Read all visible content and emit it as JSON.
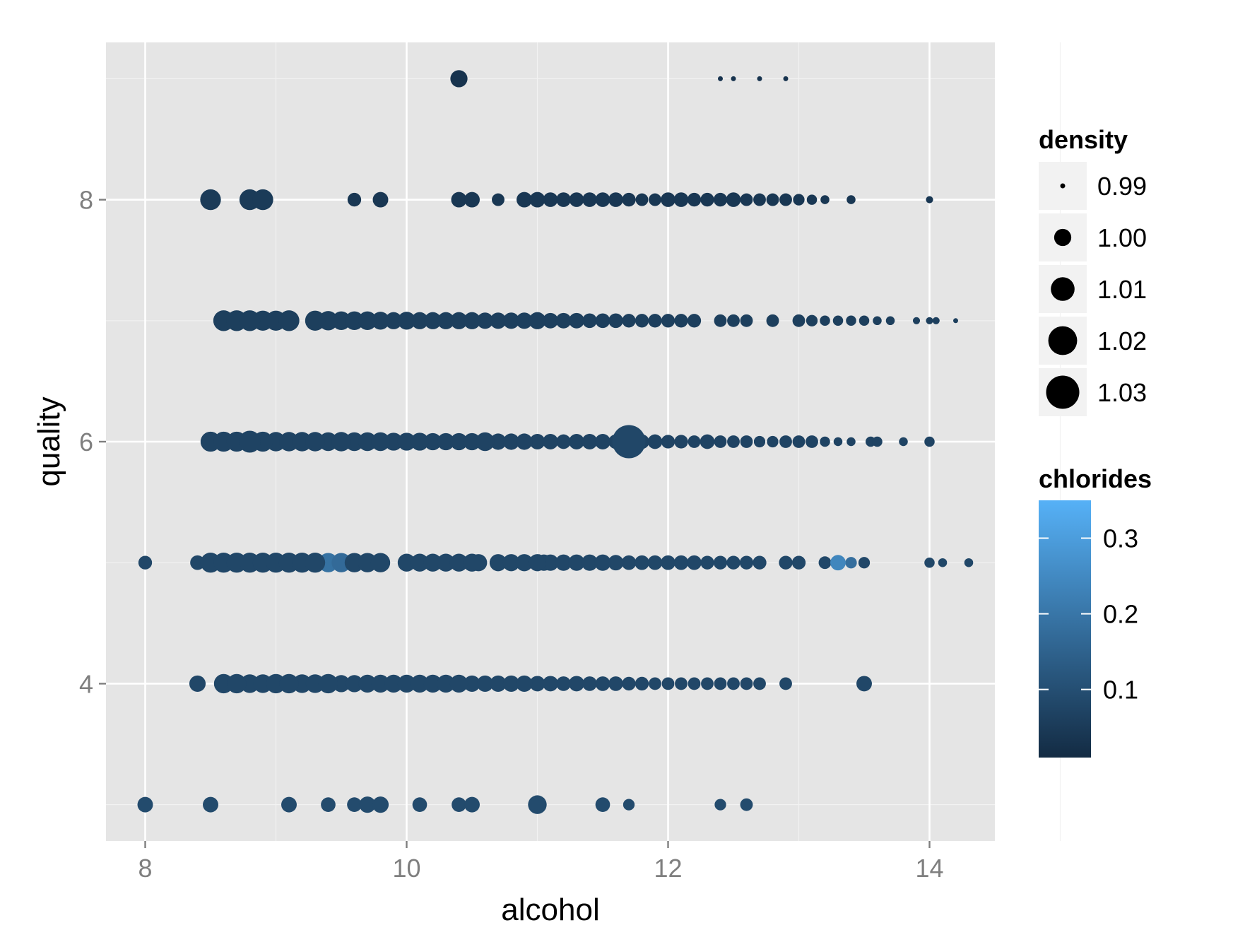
{
  "chart_data": {
    "type": "scatter",
    "xlabel": "alcohol",
    "ylabel": "quality",
    "xlim": [
      7.7,
      14.5
    ],
    "ylim": [
      2.7,
      9.3
    ],
    "x_ticks": [
      8,
      10,
      12,
      14
    ],
    "x_tick_labels": [
      "8",
      "10",
      "12",
      "14"
    ],
    "y_ticks": [
      4,
      6,
      8
    ],
    "y_tick_labels": [
      "4",
      "6",
      "8"
    ],
    "grid": true,
    "legend_position": "right",
    "size_legend": {
      "title": "density",
      "entries": [
        {
          "label": "0.99",
          "value": 0.99
        },
        {
          "label": "1.00",
          "value": 1.0
        },
        {
          "label": "1.01",
          "value": 1.01
        },
        {
          "label": "1.02",
          "value": 1.02
        },
        {
          "label": "1.03",
          "value": 1.03
        }
      ]
    },
    "color_legend": {
      "title": "chlorides",
      "min": 0.01,
      "max": 0.35,
      "low_color": "#132B43",
      "high_color": "#56B1F7",
      "ticks": [
        {
          "label": "0.1",
          "value": 0.1
        },
        {
          "label": "0.2",
          "value": 0.2
        },
        {
          "label": "0.3",
          "value": 0.3
        }
      ]
    },
    "points": [
      [
        10.4,
        9,
        1.0,
        0.03
      ],
      [
        12.4,
        9,
        0.99,
        0.03
      ],
      [
        12.5,
        9,
        0.99,
        0.03
      ],
      [
        12.7,
        9,
        0.99,
        0.03
      ],
      [
        12.9,
        9,
        0.99,
        0.03
      ],
      [
        8.5,
        8,
        1.005,
        0.05
      ],
      [
        8.8,
        8,
        1.005,
        0.05
      ],
      [
        8.9,
        8,
        1.005,
        0.05
      ],
      [
        9.6,
        8,
        0.996,
        0.04
      ],
      [
        9.8,
        8,
        0.998,
        0.04
      ],
      [
        10.4,
        8,
        0.998,
        0.04
      ],
      [
        10.5,
        8,
        0.998,
        0.04
      ],
      [
        10.7,
        8,
        0.995,
        0.04
      ],
      [
        10.9,
        8,
        0.998,
        0.04
      ],
      [
        11.0,
        8,
        0.998,
        0.04
      ],
      [
        11.1,
        8,
        0.997,
        0.04
      ],
      [
        11.2,
        8,
        0.997,
        0.04
      ],
      [
        11.3,
        8,
        0.997,
        0.04
      ],
      [
        11.4,
        8,
        0.997,
        0.04
      ],
      [
        11.5,
        8,
        0.997,
        0.04
      ],
      [
        11.6,
        8,
        0.997,
        0.04
      ],
      [
        11.7,
        8,
        0.996,
        0.04
      ],
      [
        11.8,
        8,
        0.995,
        0.04
      ],
      [
        11.9,
        8,
        0.995,
        0.04
      ],
      [
        12.0,
        8,
        0.997,
        0.04
      ],
      [
        12.1,
        8,
        0.997,
        0.04
      ],
      [
        12.2,
        8,
        0.996,
        0.04
      ],
      [
        12.3,
        8,
        0.996,
        0.04
      ],
      [
        12.4,
        8,
        0.996,
        0.04
      ],
      [
        12.5,
        8,
        0.997,
        0.04
      ],
      [
        12.6,
        8,
        0.995,
        0.04
      ],
      [
        12.7,
        8,
        0.995,
        0.04
      ],
      [
        12.8,
        8,
        0.995,
        0.04
      ],
      [
        12.9,
        8,
        0.995,
        0.04
      ],
      [
        13.0,
        8,
        0.994,
        0.04
      ],
      [
        13.1,
        8,
        0.993,
        0.04
      ],
      [
        13.2,
        8,
        0.992,
        0.04
      ],
      [
        13.4,
        8,
        0.992,
        0.04
      ],
      [
        14.0,
        8,
        0.991,
        0.04
      ],
      [
        8.6,
        7,
        1.005,
        0.06
      ],
      [
        8.7,
        7,
        1.005,
        0.06
      ],
      [
        8.8,
        7,
        1.005,
        0.06
      ],
      [
        8.9,
        7,
        1.004,
        0.06
      ],
      [
        9.0,
        7,
        1.004,
        0.06
      ],
      [
        9.1,
        7,
        1.005,
        0.06
      ],
      [
        9.3,
        7,
        1.004,
        0.06
      ],
      [
        9.4,
        7,
        1.003,
        0.06
      ],
      [
        9.5,
        7,
        1.002,
        0.06
      ],
      [
        9.6,
        7,
        1.002,
        0.06
      ],
      [
        9.7,
        7,
        1.002,
        0.06
      ],
      [
        9.8,
        7,
        1.001,
        0.06
      ],
      [
        9.9,
        7,
        1.0,
        0.06
      ],
      [
        10.0,
        7,
        1.001,
        0.06
      ],
      [
        10.1,
        7,
        1.0,
        0.06
      ],
      [
        10.2,
        7,
        1.0,
        0.06
      ],
      [
        10.3,
        7,
        1.0,
        0.06
      ],
      [
        10.4,
        7,
        1.0,
        0.06
      ],
      [
        10.5,
        7,
        1.0,
        0.06
      ],
      [
        10.6,
        7,
        0.999,
        0.06
      ],
      [
        10.7,
        7,
        0.999,
        0.06
      ],
      [
        10.8,
        7,
        0.999,
        0.06
      ],
      [
        10.9,
        7,
        0.999,
        0.06
      ],
      [
        11.0,
        7,
        1.0,
        0.06
      ],
      [
        11.1,
        7,
        0.998,
        0.06
      ],
      [
        11.2,
        7,
        0.998,
        0.06
      ],
      [
        11.3,
        7,
        0.998,
        0.06
      ],
      [
        11.4,
        7,
        0.997,
        0.06
      ],
      [
        11.5,
        7,
        0.997,
        0.06
      ],
      [
        11.6,
        7,
        0.997,
        0.06
      ],
      [
        11.7,
        7,
        0.996,
        0.06
      ],
      [
        11.8,
        7,
        0.996,
        0.06
      ],
      [
        11.9,
        7,
        0.996,
        0.06
      ],
      [
        12.0,
        7,
        0.996,
        0.06
      ],
      [
        12.1,
        7,
        0.996,
        0.06
      ],
      [
        12.2,
        7,
        0.996,
        0.06
      ],
      [
        12.4,
        7,
        0.995,
        0.06
      ],
      [
        12.5,
        7,
        0.995,
        0.06
      ],
      [
        12.6,
        7,
        0.995,
        0.06
      ],
      [
        12.8,
        7,
        0.995,
        0.06
      ],
      [
        13.0,
        7,
        0.995,
        0.06
      ],
      [
        13.1,
        7,
        0.994,
        0.06
      ],
      [
        13.2,
        7,
        0.993,
        0.06
      ],
      [
        13.3,
        7,
        0.993,
        0.06
      ],
      [
        13.4,
        7,
        0.993,
        0.06
      ],
      [
        13.5,
        7,
        0.993,
        0.06
      ],
      [
        13.6,
        7,
        0.992,
        0.06
      ],
      [
        13.7,
        7,
        0.992,
        0.06
      ],
      [
        13.9,
        7,
        0.991,
        0.06
      ],
      [
        14.0,
        7,
        0.991,
        0.06
      ],
      [
        14.05,
        7,
        0.991,
        0.06
      ],
      [
        14.2,
        7,
        0.99,
        0.06
      ],
      [
        8.5,
        6,
        1.004,
        0.07
      ],
      [
        8.6,
        6,
        1.004,
        0.07
      ],
      [
        8.7,
        6,
        1.004,
        0.07
      ],
      [
        8.8,
        6,
        1.007,
        0.07
      ],
      [
        8.9,
        6,
        1.004,
        0.07
      ],
      [
        9.0,
        6,
        1.003,
        0.07
      ],
      [
        9.1,
        6,
        1.003,
        0.07
      ],
      [
        9.2,
        6,
        1.003,
        0.07
      ],
      [
        9.3,
        6,
        1.003,
        0.07
      ],
      [
        9.4,
        6,
        1.002,
        0.07
      ],
      [
        9.5,
        6,
        1.003,
        0.07
      ],
      [
        9.6,
        6,
        1.002,
        0.07
      ],
      [
        9.7,
        6,
        1.002,
        0.07
      ],
      [
        9.8,
        6,
        1.002,
        0.07
      ],
      [
        9.9,
        6,
        1.001,
        0.07
      ],
      [
        10.0,
        6,
        1.001,
        0.07
      ],
      [
        10.1,
        6,
        1.001,
        0.07
      ],
      [
        10.2,
        6,
        1.0,
        0.07
      ],
      [
        10.3,
        6,
        1.0,
        0.07
      ],
      [
        10.4,
        6,
        1.0,
        0.07
      ],
      [
        10.5,
        6,
        1.0,
        0.07
      ],
      [
        10.6,
        6,
        1.002,
        0.07
      ],
      [
        10.7,
        6,
        0.999,
        0.07
      ],
      [
        10.8,
        6,
        0.999,
        0.07
      ],
      [
        10.9,
        6,
        0.999,
        0.07
      ],
      [
        11.0,
        6,
        0.998,
        0.07
      ],
      [
        11.1,
        6,
        0.998,
        0.07
      ],
      [
        11.2,
        6,
        0.997,
        0.07
      ],
      [
        11.3,
        6,
        0.998,
        0.07
      ],
      [
        11.4,
        6,
        0.998,
        0.07
      ],
      [
        11.5,
        6,
        0.998,
        0.07
      ],
      [
        11.6,
        6,
        0.997,
        0.07
      ],
      [
        11.7,
        6,
        1.03,
        0.08
      ],
      [
        11.8,
        6,
        0.997,
        0.07
      ],
      [
        11.9,
        6,
        0.997,
        0.07
      ],
      [
        12.0,
        6,
        0.996,
        0.07
      ],
      [
        12.1,
        6,
        0.996,
        0.07
      ],
      [
        12.2,
        6,
        0.995,
        0.07
      ],
      [
        12.3,
        6,
        0.997,
        0.07
      ],
      [
        12.4,
        6,
        0.995,
        0.07
      ],
      [
        12.5,
        6,
        0.995,
        0.07
      ],
      [
        12.6,
        6,
        0.995,
        0.07
      ],
      [
        12.7,
        6,
        0.994,
        0.07
      ],
      [
        12.8,
        6,
        0.994,
        0.07
      ],
      [
        12.9,
        6,
        0.995,
        0.07
      ],
      [
        13.0,
        6,
        0.995,
        0.07
      ],
      [
        13.1,
        6,
        0.995,
        0.07
      ],
      [
        13.2,
        6,
        0.993,
        0.07
      ],
      [
        13.3,
        6,
        0.992,
        0.07
      ],
      [
        13.4,
        6,
        0.992,
        0.07
      ],
      [
        13.55,
        6,
        0.993,
        0.07
      ],
      [
        13.6,
        6,
        0.993,
        0.07
      ],
      [
        13.8,
        6,
        0.992,
        0.07
      ],
      [
        14.0,
        6,
        0.993,
        0.07
      ],
      [
        8.0,
        5,
        0.996,
        0.08
      ],
      [
        8.4,
        5,
        0.997,
        0.08
      ],
      [
        8.5,
        5,
        1.004,
        0.08
      ],
      [
        8.6,
        5,
        1.004,
        0.08
      ],
      [
        8.7,
        5,
        1.004,
        0.08
      ],
      [
        8.8,
        5,
        1.004,
        0.08
      ],
      [
        8.9,
        5,
        1.004,
        0.08
      ],
      [
        9.0,
        5,
        1.004,
        0.08
      ],
      [
        9.1,
        5,
        1.004,
        0.08
      ],
      [
        9.2,
        5,
        1.004,
        0.08
      ],
      [
        9.3,
        5,
        1.004,
        0.08
      ],
      [
        9.4,
        5,
        1.003,
        0.19
      ],
      [
        9.5,
        5,
        1.003,
        0.17
      ],
      [
        9.6,
        5,
        1.003,
        0.08
      ],
      [
        9.7,
        5,
        1.003,
        0.08
      ],
      [
        9.8,
        5,
        1.003,
        0.08
      ],
      [
        10.0,
        5,
        1.001,
        0.08
      ],
      [
        10.1,
        5,
        1.001,
        0.08
      ],
      [
        10.2,
        5,
        1.001,
        0.08
      ],
      [
        10.3,
        5,
        1.001,
        0.08
      ],
      [
        10.4,
        5,
        1.001,
        0.08
      ],
      [
        10.5,
        5,
        1.001,
        0.08
      ],
      [
        10.55,
        5,
        1.0,
        0.08
      ],
      [
        10.7,
        5,
        1.0,
        0.08
      ],
      [
        10.8,
        5,
        1.0,
        0.08
      ],
      [
        10.9,
        5,
        1.0,
        0.08
      ],
      [
        11.0,
        5,
        1.0,
        0.08
      ],
      [
        11.05,
        5,
        0.999,
        0.08
      ],
      [
        11.1,
        5,
        0.999,
        0.08
      ],
      [
        11.2,
        5,
        0.999,
        0.08
      ],
      [
        11.3,
        5,
        0.999,
        0.08
      ],
      [
        11.4,
        5,
        0.999,
        0.08
      ],
      [
        11.5,
        5,
        0.999,
        0.08
      ],
      [
        11.6,
        5,
        0.998,
        0.08
      ],
      [
        11.7,
        5,
        0.997,
        0.08
      ],
      [
        11.8,
        5,
        0.997,
        0.08
      ],
      [
        11.9,
        5,
        0.997,
        0.08
      ],
      [
        12.0,
        5,
        0.997,
        0.08
      ],
      [
        12.1,
        5,
        0.997,
        0.08
      ],
      [
        12.2,
        5,
        0.997,
        0.08
      ],
      [
        12.3,
        5,
        0.996,
        0.08
      ],
      [
        12.4,
        5,
        0.996,
        0.08
      ],
      [
        12.5,
        5,
        0.996,
        0.08
      ],
      [
        12.6,
        5,
        0.996,
        0.08
      ],
      [
        12.7,
        5,
        0.996,
        0.08
      ],
      [
        12.9,
        5,
        0.996,
        0.08
      ],
      [
        13.0,
        5,
        0.996,
        0.08
      ],
      [
        13.2,
        5,
        0.995,
        0.08
      ],
      [
        13.3,
        5,
        0.998,
        0.24
      ],
      [
        13.4,
        5,
        0.994,
        0.18
      ],
      [
        13.5,
        5,
        0.994,
        0.08
      ],
      [
        14.0,
        5,
        0.993,
        0.08
      ],
      [
        14.1,
        5,
        0.992,
        0.08
      ],
      [
        14.3,
        5,
        0.992,
        0.08
      ],
      [
        8.4,
        4,
        0.999,
        0.08
      ],
      [
        8.6,
        4,
        1.003,
        0.08
      ],
      [
        8.7,
        4,
        1.003,
        0.08
      ],
      [
        8.8,
        4,
        1.002,
        0.08
      ],
      [
        8.9,
        4,
        1.002,
        0.08
      ],
      [
        9.0,
        4,
        1.003,
        0.08
      ],
      [
        9.1,
        4,
        1.003,
        0.08
      ],
      [
        9.2,
        4,
        1.002,
        0.08
      ],
      [
        9.3,
        4,
        1.002,
        0.08
      ],
      [
        9.4,
        4,
        1.003,
        0.08
      ],
      [
        9.5,
        4,
        1.0,
        0.08
      ],
      [
        9.6,
        4,
        1.0,
        0.08
      ],
      [
        9.7,
        4,
        1.001,
        0.08
      ],
      [
        9.8,
        4,
        1.001,
        0.08
      ],
      [
        9.9,
        4,
        1.001,
        0.08
      ],
      [
        10.0,
        4,
        1.001,
        0.08
      ],
      [
        10.1,
        4,
        1.001,
        0.08
      ],
      [
        10.2,
        4,
        1.001,
        0.08
      ],
      [
        10.3,
        4,
        1.001,
        0.08
      ],
      [
        10.4,
        4,
        1.001,
        0.08
      ],
      [
        10.5,
        4,
        0.999,
        0.08
      ],
      [
        10.6,
        4,
        0.999,
        0.08
      ],
      [
        10.7,
        4,
        0.999,
        0.08
      ],
      [
        10.8,
        4,
        0.999,
        0.08
      ],
      [
        10.9,
        4,
        0.999,
        0.08
      ],
      [
        11.0,
        4,
        0.998,
        0.08
      ],
      [
        11.1,
        4,
        0.998,
        0.08
      ],
      [
        11.2,
        4,
        0.997,
        0.08
      ],
      [
        11.3,
        4,
        0.998,
        0.08
      ],
      [
        11.4,
        4,
        0.997,
        0.08
      ],
      [
        11.5,
        4,
        0.997,
        0.08
      ],
      [
        11.6,
        4,
        0.997,
        0.08
      ],
      [
        11.7,
        4,
        0.996,
        0.08
      ],
      [
        11.8,
        4,
        0.996,
        0.08
      ],
      [
        11.9,
        4,
        0.995,
        0.08
      ],
      [
        12.0,
        4,
        0.995,
        0.08
      ],
      [
        12.1,
        4,
        0.995,
        0.08
      ],
      [
        12.2,
        4,
        0.995,
        0.08
      ],
      [
        12.3,
        4,
        0.995,
        0.08
      ],
      [
        12.4,
        4,
        0.995,
        0.08
      ],
      [
        12.5,
        4,
        0.995,
        0.08
      ],
      [
        12.6,
        4,
        0.995,
        0.08
      ],
      [
        12.7,
        4,
        0.995,
        0.08
      ],
      [
        12.9,
        4,
        0.995,
        0.08
      ],
      [
        13.5,
        4,
        0.998,
        0.08
      ],
      [
        8.0,
        3,
        0.998,
        0.09
      ],
      [
        8.5,
        3,
        0.998,
        0.09
      ],
      [
        9.1,
        3,
        0.998,
        0.09
      ],
      [
        9.4,
        3,
        0.997,
        0.09
      ],
      [
        9.6,
        3,
        0.997,
        0.09
      ],
      [
        9.7,
        3,
        0.999,
        0.09
      ],
      [
        9.8,
        3,
        0.999,
        0.09
      ],
      [
        10.1,
        3,
        0.997,
        0.09
      ],
      [
        10.4,
        3,
        0.997,
        0.09
      ],
      [
        10.5,
        3,
        0.998,
        0.09
      ],
      [
        11.0,
        3,
        1.002,
        0.09
      ],
      [
        11.5,
        3,
        0.997,
        0.09
      ],
      [
        11.7,
        3,
        0.994,
        0.09
      ],
      [
        12.4,
        3,
        0.994,
        0.09
      ],
      [
        12.6,
        3,
        0.995,
        0.09
      ]
    ]
  }
}
